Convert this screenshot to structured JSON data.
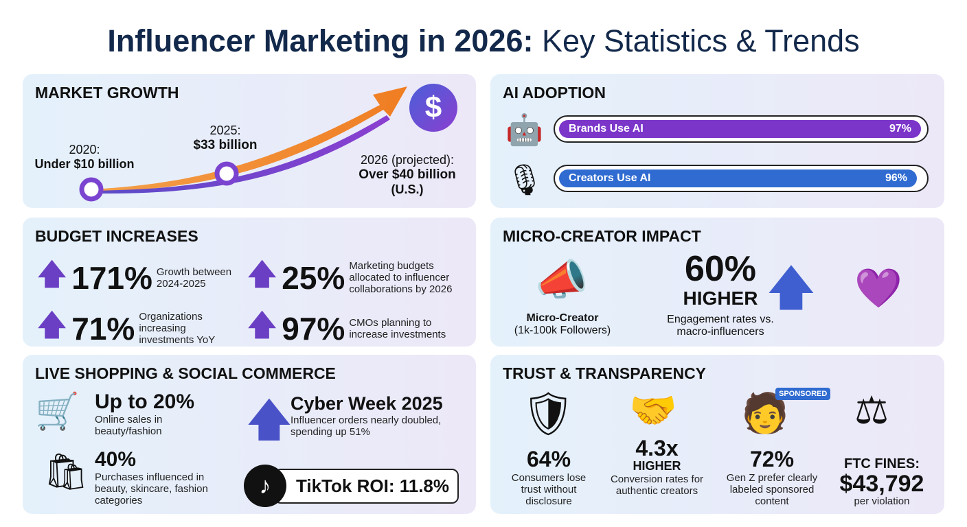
{
  "title": {
    "bold": "Influencer Marketing in 2026:",
    "rest": " Key Statistics & Trends"
  },
  "market_growth": {
    "heading": "MARKET GROWTH",
    "p2020_label": "2020:",
    "p2020_value": "Under $10 billion",
    "p2025_label": "2025:",
    "p2025_value": "$33 billion",
    "p2026_label": "2026 (projected):",
    "p2026_value": "Over $40 billion",
    "p2026_note": "(U.S.)",
    "icon": "dollar-icon"
  },
  "ai_adoption": {
    "heading": "AI ADOPTION",
    "bars": [
      {
        "label": "Brands Use AI",
        "value": "97%",
        "percent": 97,
        "color": "#7b35c9"
      },
      {
        "label": "Creators Use AI",
        "value": "96%",
        "percent": 96,
        "color": "#2f6bd0"
      }
    ]
  },
  "budget": {
    "heading": "BUDGET INCREASES",
    "items": [
      {
        "value": "171%",
        "desc": "Growth between 2024-2025"
      },
      {
        "value": "25%",
        "desc": "Marketing budgets allocated to influencer collaborations by 2026"
      },
      {
        "value": "71%",
        "desc": "Organizations increasing investments YoY"
      },
      {
        "value": "97%",
        "desc": "CMOs planning to increase investments"
      }
    ]
  },
  "micro": {
    "heading": "MICRO-CREATOR IMPACT",
    "creator_label": "Micro-Creator",
    "creator_sub": "(1k-100k Followers)",
    "value": "60%",
    "value_sub": "HIGHER",
    "desc": "Engagement rates vs. macro-influencers"
  },
  "live": {
    "heading": "LIVE SHOPPING & SOCIAL COMMERCE",
    "s1_value": "Up to 20%",
    "s1_desc": "Online sales in beauty/fashion",
    "s2_value": "Cyber Week 2025",
    "s2_desc": "Influencer orders nearly doubled, spending up 51%",
    "s3_value": "40%",
    "s3_desc": "Purchases influenced in beauty, skincare, fashion categories",
    "tiktok": "TikTok ROI: 11.8%"
  },
  "trust": {
    "heading": "TRUST & TRANSPARENCY",
    "items": [
      {
        "value": "64%",
        "desc": "Consumers lose trust without disclosure"
      },
      {
        "value": "4.3x",
        "sub": "HIGHER",
        "desc": "Conversion rates for authentic creators"
      },
      {
        "value": "72%",
        "desc": "Gen Z prefer clearly labeled sponsored content",
        "badge": "SPONSORED"
      },
      {
        "pre": "FTC FINES:",
        "value": "$43,792",
        "desc": "per violation"
      }
    ]
  },
  "colors": {
    "navy": "#13294b",
    "purple": "#6a3fc4",
    "blue": "#2f6bd0",
    "orange": "#f28a2e"
  }
}
